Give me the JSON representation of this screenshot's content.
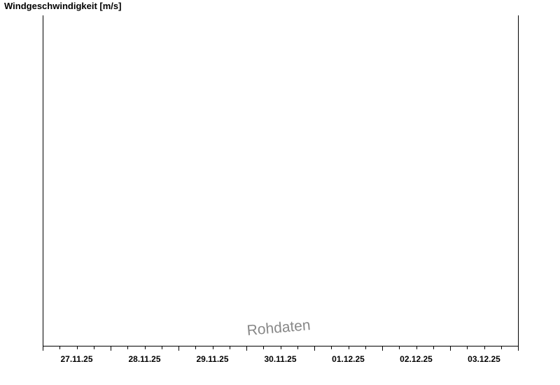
{
  "chart_data": {
    "type": "line",
    "title": "Windgeschwindigkeit [m/s]",
    "xlabel": "",
    "ylabel": "",
    "x_tick_labels": [
      "27.11.25",
      "28.11.25",
      "29.11.25",
      "30.11.25",
      "01.12.25",
      "02.12.25",
      "03.12.25"
    ],
    "xlim": [
      "27.11.25 00:00",
      "04.12.25 00:00"
    ],
    "minor_tick_interval_hours": 6,
    "series": [],
    "grid": false,
    "watermark": "Rohdaten",
    "colors": {
      "axis": "#000000",
      "watermark": "#888888"
    }
  }
}
